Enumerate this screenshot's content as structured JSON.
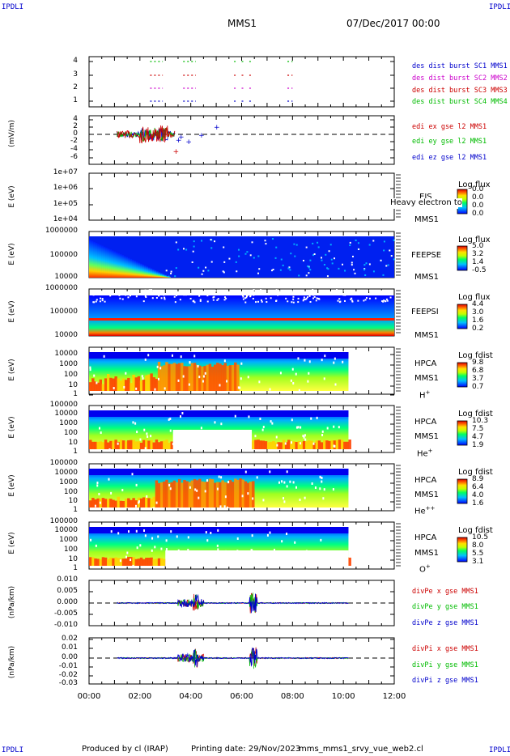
{
  "corner_label": "IPDLI",
  "header": {
    "mission": "MMS1",
    "date": "07/Dec/2017 00:00"
  },
  "footer": {
    "produced_by": "Produced by cl (IRAP)",
    "printing_date": "Printing date: 29/Nov/2023",
    "file": "mms_mms1_srvy_vue_web2.cl"
  },
  "x_ticks": [
    "00:00",
    "02:00",
    "04:00",
    "06:00",
    "08:00",
    "10:00",
    "12:00"
  ],
  "panels": {
    "burst": {
      "y_ticks": [
        "4",
        "3",
        "2",
        "1"
      ],
      "legend": [
        {
          "text": "des dist burst SC1 MMS1",
          "color": "#0000cc"
        },
        {
          "text": "des dist burst SC2 MMS2",
          "color": "#cc00cc"
        },
        {
          "text": "des dist burst SC3 MMS3",
          "color": "#cc0000"
        },
        {
          "text": "des dist burst SC4 MMS4",
          "color": "#00bb00"
        }
      ]
    },
    "edi": {
      "ylabel": "(mV/m)",
      "y_ticks": [
        "4",
        "2",
        "0",
        "-2",
        "-4",
        "-6"
      ],
      "legend": [
        {
          "text": "edi ex gse l2 MMS1",
          "color": "#cc0000"
        },
        {
          "text": "edi ey gse l2 MMS1",
          "color": "#00bb00"
        },
        {
          "text": "edi ez gse l2 MMS1",
          "color": "#0000cc"
        }
      ]
    },
    "eis": {
      "ylabel": "E (eV)",
      "y_ticks": [
        "1e+07",
        "1e+06",
        "1e+05",
        "1e+04"
      ],
      "inst": "EIS",
      "sc": "MMS1",
      "overlay": "Heavy electron to",
      "cb_title": "Log flux",
      "cb_values": [
        "0.0",
        "0.0",
        "0.0",
        "0.0"
      ]
    },
    "feepse": {
      "ylabel": "E (eV)",
      "y_ticks": [
        "1000000",
        "100000",
        "10000"
      ],
      "inst": "FEEPSE",
      "sc": "MMS1",
      "cb_title": "Log flux",
      "cb_values": [
        "5.0",
        "3.2",
        "1.4",
        "-0.5"
      ]
    },
    "feepsi": {
      "ylabel": "E (eV)",
      "y_ticks": [
        "1000000",
        "100000",
        "10000"
      ],
      "inst": "FEEPSI",
      "sc": "MMS1",
      "cb_title": "Log flux",
      "cb_values": [
        "4.4",
        "3.0",
        "1.6",
        "0.2"
      ]
    },
    "hplus": {
      "ylabel": "E (eV)",
      "y_ticks": [
        "10000",
        "1000",
        "100",
        "10",
        "1"
      ],
      "inst": "HPCA",
      "sc": "MMS1",
      "species": "H",
      "charge": "+",
      "cb_title": "Log fdist",
      "cb_values": [
        "9.8",
        "6.8",
        "3.7",
        "0.7"
      ]
    },
    "heplus": {
      "ylabel": "E (eV)",
      "y_ticks": [
        "100000",
        "10000",
        "1000",
        "100",
        "10",
        "1"
      ],
      "inst": "HPCA",
      "sc": "MMS1",
      "species": "He",
      "charge": "+",
      "cb_title": "Log fdist",
      "cb_values": [
        "10.3",
        "7.5",
        "4.7",
        "1.9"
      ]
    },
    "heplusplus": {
      "ylabel": "E (eV)",
      "y_ticks": [
        "100000",
        "10000",
        "1000",
        "100",
        "10",
        "1"
      ],
      "inst": "HPCA",
      "sc": "MMS1",
      "species": "He",
      "charge": "++",
      "cb_title": "Log fdist",
      "cb_values": [
        "8.9",
        "6.4",
        "4.0",
        "1.6"
      ]
    },
    "oplus": {
      "ylabel": "E (eV)",
      "y_ticks": [
        "100000",
        "10000",
        "1000",
        "100",
        "10",
        "1"
      ],
      "inst": "HPCA",
      "sc": "MMS1",
      "species": "O",
      "charge": "+",
      "cb_title": "Log fdist",
      "cb_values": [
        "10.5",
        "8.0",
        "5.5",
        "3.1"
      ]
    },
    "divpe": {
      "ylabel": "(nPa/km)",
      "y_ticks": [
        "0.010",
        "0.005",
        "0.000",
        "-0.005",
        "-0.010"
      ],
      "legend": [
        {
          "text": "divPe x gse MMS1",
          "color": "#cc0000"
        },
        {
          "text": "divPe y gse MMS1",
          "color": "#00bb00"
        },
        {
          "text": "divPe z gse MMS1",
          "color": "#0000cc"
        }
      ]
    },
    "divpi": {
      "ylabel": "(nPa/km)",
      "y_ticks": [
        "0.02",
        "0.01",
        "0.00",
        "-0.01",
        "-0.02",
        "-0.03"
      ],
      "legend": [
        {
          "text": "divPi x gse MMS1",
          "color": "#cc0000"
        },
        {
          "text": "divPi y gse MMS1",
          "color": "#00bb00"
        },
        {
          "text": "divPi z gse MMS1",
          "color": "#0000cc"
        }
      ]
    }
  },
  "chart_data": {
    "type": "line",
    "x_range_hours": [
      0,
      12
    ],
    "burst_intervals_hours": [
      [
        2.4,
        2.9
      ],
      [
        3.7,
        4.2
      ],
      [
        5.7,
        5.8
      ],
      [
        6.0,
        6.1
      ],
      [
        6.3,
        6.4
      ],
      [
        7.8,
        8.0
      ]
    ],
    "edi_active_hours": [
      1.1,
      5.0
    ],
    "divp_active_hours": [
      1.1,
      10.2
    ],
    "spectrogram_coverage_hours": {
      "feepse": [
        0,
        12
      ],
      "feepsi": [
        0,
        12
      ],
      "hpca": [
        0,
        10.2
      ]
    }
  }
}
